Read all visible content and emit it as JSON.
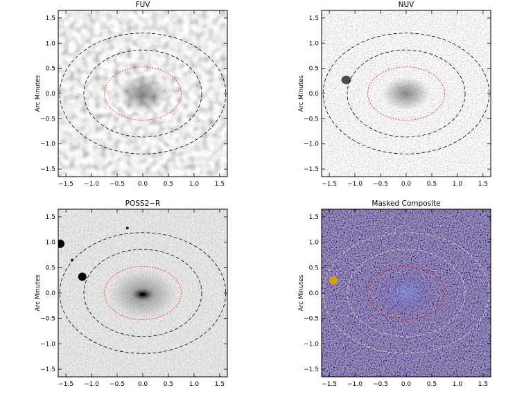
{
  "figure": {
    "panels": [
      {
        "title": "FUV",
        "ylabel": "Arc Minutes",
        "style": "fuv",
        "axis_range": [
          -1.65,
          1.65
        ],
        "x_ticks": [
          "-1.5",
          "-1.0",
          "-0.5",
          "0.0",
          "0.5",
          "1.0",
          "1.5"
        ],
        "y_ticks": [
          "1.5",
          "1.0",
          "0.5",
          "0.0",
          "-0.5",
          "-1.0",
          "-1.5"
        ],
        "inner_ellipse_color": "#ff3b3b",
        "outer_ellipse_color": "#000000"
      },
      {
        "title": "NUV",
        "ylabel": "Arc Minutes",
        "style": "nuv",
        "axis_range": [
          -1.65,
          1.65
        ],
        "x_ticks": [
          "-1.5",
          "-1.0",
          "-0.5",
          "0.0",
          "0.5",
          "1.0",
          "1.5"
        ],
        "y_ticks": [
          "1.5",
          "1.0",
          "0.5",
          "0.0",
          "-0.5",
          "-1.0",
          "-1.5"
        ],
        "inner_ellipse_color": "#ff3b3b",
        "outer_ellipse_color": "#000000"
      },
      {
        "title": "POSS2−R",
        "ylabel": "Arc Minutes",
        "style": "poss",
        "axis_range": [
          -1.65,
          1.65
        ],
        "x_ticks": [
          "-1.5",
          "-1.0",
          "-0.5",
          "0.0",
          "0.5",
          "1.0",
          "1.5"
        ],
        "y_ticks": [
          "1.5",
          "1.0",
          "0.5",
          "0.0",
          "-0.5",
          "-1.0",
          "-1.5"
        ],
        "inner_ellipse_color": "#ff3b3b",
        "outer_ellipse_color": "#000000"
      },
      {
        "title": "Masked Composite",
        "ylabel": "Arc Minutes",
        "style": "composite",
        "axis_range": [
          -1.65,
          1.65
        ],
        "x_ticks": [
          "-1.5",
          "-1.0",
          "-0.5",
          "0.0",
          "0.5",
          "1.0",
          "1.5"
        ],
        "y_ticks": [
          "1.5",
          "1.0",
          "0.5",
          "0.0",
          "-0.5",
          "-1.0",
          "-1.5"
        ],
        "inner_ellipse_color": "#d42020",
        "outer_ellipse_color": "#d8d8d8"
      }
    ]
  }
}
